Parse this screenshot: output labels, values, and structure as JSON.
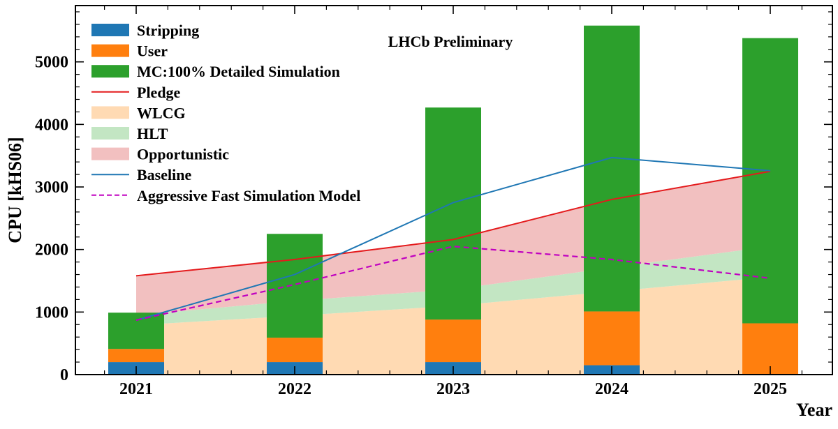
{
  "chart_data": {
    "type": "bar",
    "annotation": "LHCb Preliminary",
    "xlabel": "Year",
    "ylabel": "CPU [kHS06]",
    "ylim": [
      0,
      5900
    ],
    "yticks": [
      0,
      1000,
      2000,
      3000,
      4000,
      5000
    ],
    "ytick_labels": [
      "0",
      "1000",
      "2000",
      "3000",
      "4000",
      "5000"
    ],
    "categories": [
      "2021",
      "2022",
      "2023",
      "2024",
      "2025"
    ],
    "legend_position": "top-left",
    "stacked_bars": [
      {
        "name": "Stripping",
        "color": "#1f77b4",
        "values": [
          200,
          200,
          200,
          150,
          0
        ]
      },
      {
        "name": "User",
        "color": "#ff7f0e",
        "values": [
          210,
          390,
          680,
          860,
          820
        ]
      },
      {
        "name": "MC:100% Detailed Simulation",
        "color": "#2ca02c",
        "values": [
          580,
          1660,
          3390,
          4570,
          4560
        ]
      }
    ],
    "stacked_areas": [
      {
        "name": "WLCG",
        "color": "#ffdab3",
        "values": [
          790,
          940,
          1100,
          1330,
          1560
        ]
      },
      {
        "name": "HLT",
        "color": "#c3e6c3",
        "values": [
          160,
          240,
          260,
          380,
          490
        ]
      },
      {
        "name": "Opportunistic",
        "color": "#f2c0c0",
        "values": [
          630,
          680,
          800,
          1090,
          1200
        ]
      }
    ],
    "lines": [
      {
        "name": "Pledge",
        "color": "#e41a1c",
        "style": "solid",
        "values": [
          1580,
          1840,
          2160,
          2800,
          3250
        ]
      },
      {
        "name": "Baseline",
        "color": "#1f77b4",
        "style": "solid",
        "values": [
          870,
          1600,
          2750,
          3470,
          3260
        ]
      },
      {
        "name": "Aggressive Fast Simulation Model",
        "color": "#c000c0",
        "style": "dashed",
        "values": [
          870,
          1440,
          2050,
          1840,
          1540
        ]
      }
    ],
    "legend_order": [
      "Stripping",
      "User",
      "MC:100% Detailed Simulation",
      "Pledge",
      "WLCG",
      "HLT",
      "Opportunistic",
      "Baseline",
      "Aggressive Fast Simulation Model"
    ]
  }
}
